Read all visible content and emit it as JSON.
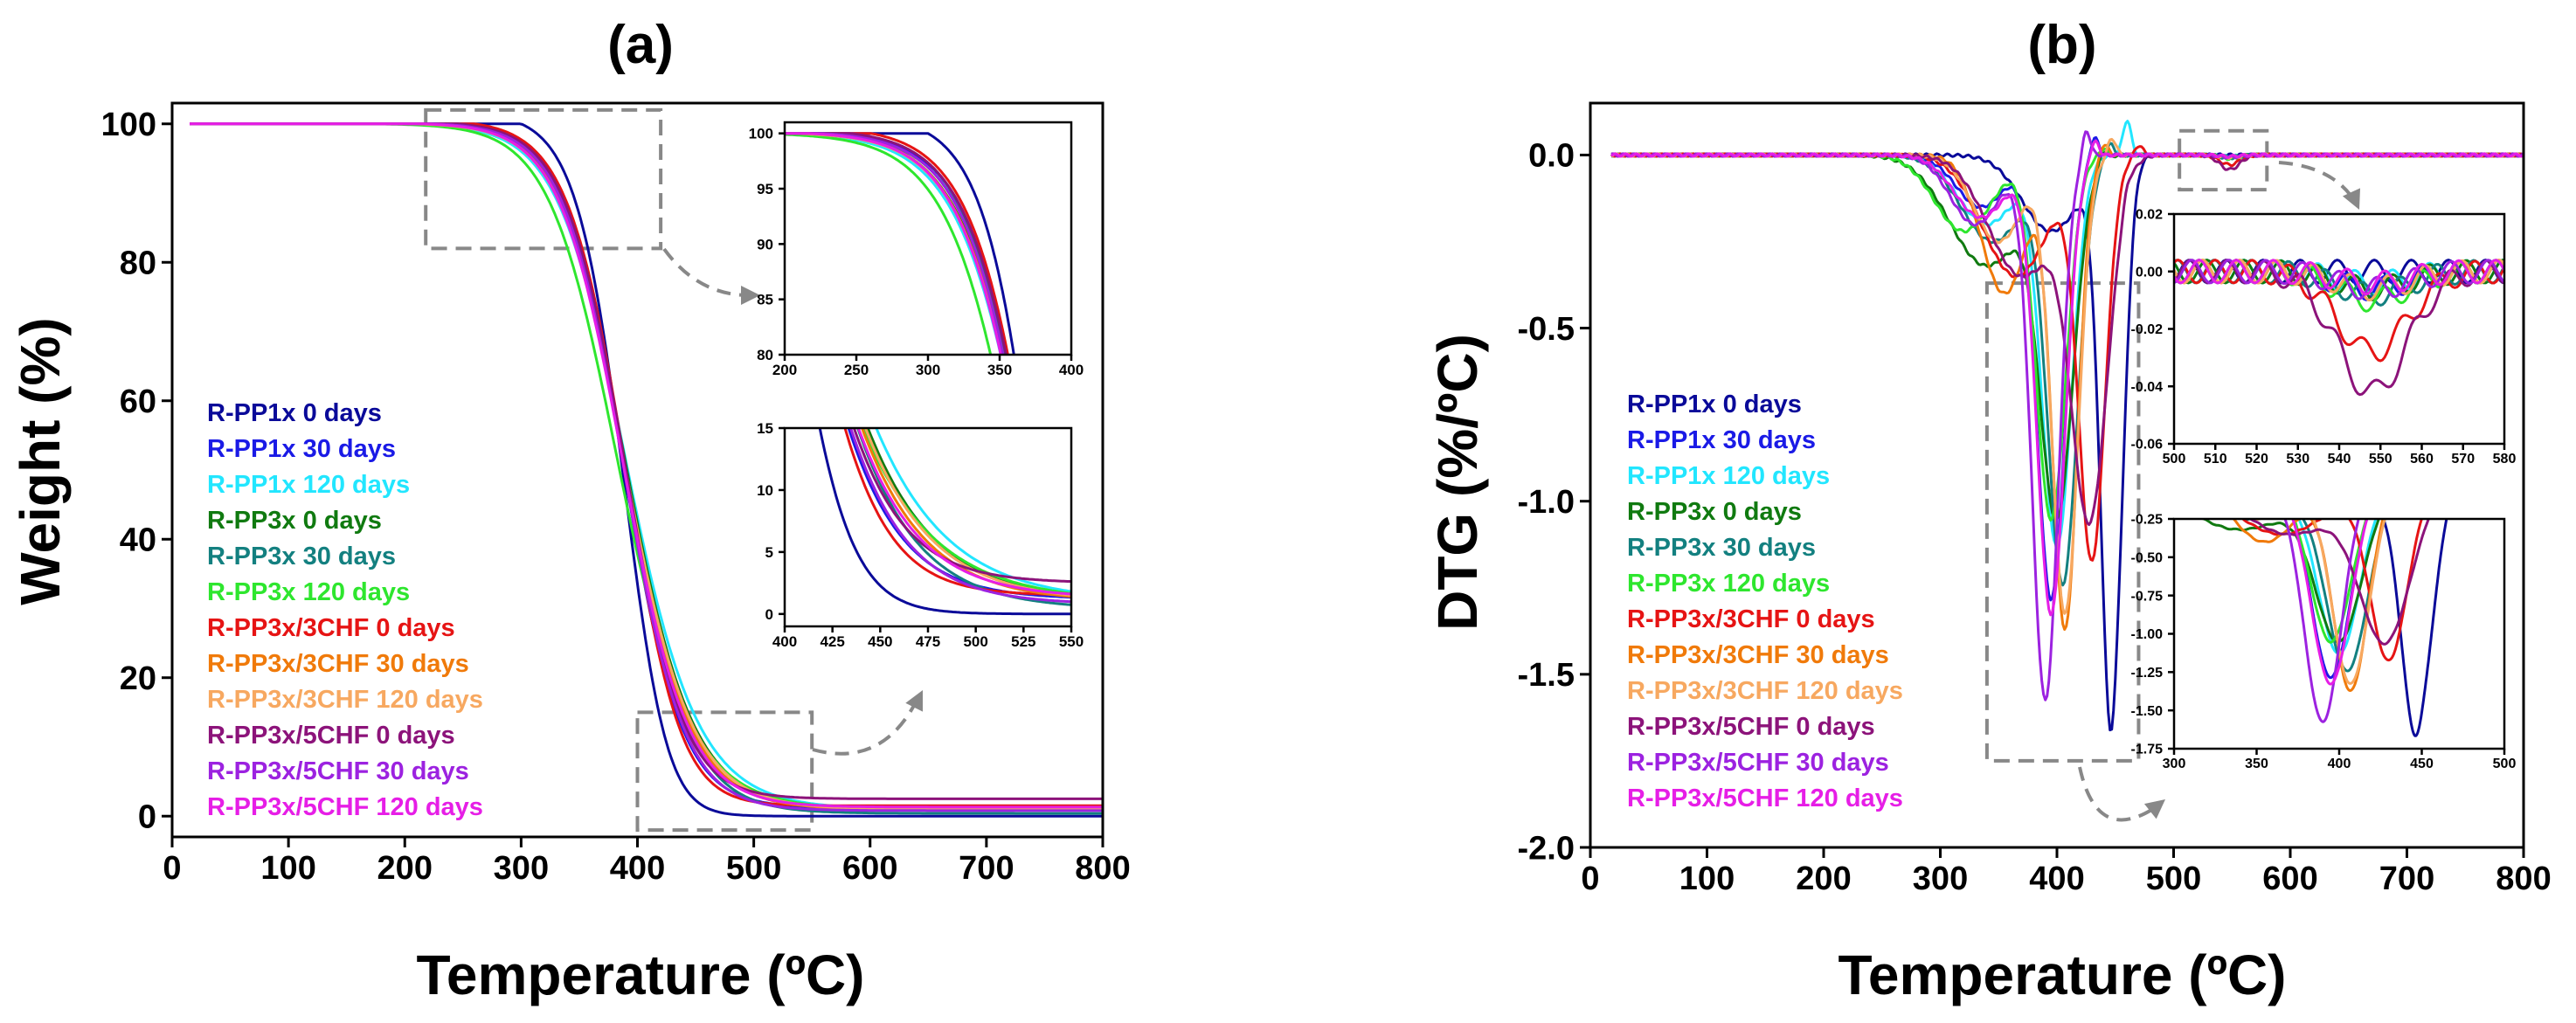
{
  "colors": {
    "axis": "#000000",
    "box": "#888888",
    "series": [
      "#0a0a99",
      "#1a1ae6",
      "#22e6ff",
      "#107a10",
      "#138080",
      "#2ee62e",
      "#e61414",
      "#f07a0a",
      "#f7a860",
      "#8c137a",
      "#9c22e0",
      "#e61ee6"
    ]
  },
  "legend": [
    "R-PP1x 0 days",
    "R-PP1x 30 days",
    "R-PP1x 120 days",
    "R-PP3x 0 days",
    "R-PP3x 30 days",
    "R-PP3x 120 days",
    "R-PP3x/3CHF 0 days",
    "R-PP3x/3CHF 30 days",
    "R-PP3x/3CHF 120 days",
    "R-PP3x/5CHF 0 days",
    "R-PP3x/5CHF 30 days",
    "R-PP3x/5CHF 120 days"
  ],
  "chart_data": [
    {
      "id": "a",
      "panel_label": "(a)",
      "type": "line",
      "xlabel": "Temperature (ºC)",
      "ylabel": "Weight (%)",
      "xlim": [
        0,
        800
      ],
      "ylim": [
        -3,
        103
      ],
      "xticks": [
        0,
        100,
        200,
        300,
        400,
        500,
        600,
        700,
        800
      ],
      "yticks": [
        0,
        20,
        40,
        60,
        80,
        100
      ],
      "legend_position": "left",
      "series": [
        {
          "name": "R-PP1x 0 days",
          "onset": 300,
          "t50": 400,
          "width": 22,
          "steep": 1.6,
          "residue": 0.0,
          "rise": 0
        },
        {
          "name": "R-PP1x 30 days",
          "onset": 215,
          "t50": 388,
          "width": 25,
          "steep": 1.0,
          "residue": 1.2,
          "rise": 0
        },
        {
          "name": "R-PP1x 120 days",
          "onset": 190,
          "t50": 382,
          "width": 28,
          "steep": 0.8,
          "residue": 1.0,
          "rise": 0
        },
        {
          "name": "R-PP3x 0 days",
          "onset": 205,
          "t50": 384,
          "width": 27,
          "steep": 0.85,
          "residue": 1.1,
          "rise": 0
        },
        {
          "name": "R-PP3x 30 days",
          "onset": 210,
          "t50": 386,
          "width": 26,
          "steep": 0.9,
          "residue": 0.4,
          "rise": 0
        },
        {
          "name": "R-PP3x 120 days",
          "onset": 170,
          "t50": 375,
          "width": 28,
          "steep": 0.8,
          "residue": 1.0,
          "rise": 0
        },
        {
          "name": "R-PP3x/3CHF 0 days",
          "onset": 260,
          "t50": 398,
          "width": 26,
          "steep": 1.3,
          "residue": 1.5,
          "rise": 0
        },
        {
          "name": "R-PP3x/3CHF 30 days",
          "onset": 215,
          "t50": 385,
          "width": 27,
          "steep": 0.9,
          "residue": 1.0,
          "rise": 0
        },
        {
          "name": "R-PP3x/3CHF 120 days",
          "onset": 205,
          "t50": 383,
          "width": 27,
          "steep": 0.85,
          "residue": 1.0,
          "rise": 0
        },
        {
          "name": "R-PP3x/5CHF 0 days",
          "onset": 245,
          "t50": 392,
          "width": 26,
          "steep": 1.1,
          "residue": 2.5,
          "rise": 0
        },
        {
          "name": "R-PP3x/5CHF 30 days",
          "onset": 225,
          "t50": 388,
          "width": 26,
          "steep": 1.0,
          "residue": 0.8,
          "rise": 0
        },
        {
          "name": "R-PP3x/5CHF 120 days",
          "onset": 215,
          "t50": 386,
          "width": 27,
          "steep": 0.95,
          "residue": 1.3,
          "rise": 0
        }
      ],
      "zoom_boxes": [
        {
          "x": [
            218,
            420
          ],
          "y": [
            82,
            102
          ]
        },
        {
          "x": [
            400,
            550
          ],
          "y": [
            -2,
            15
          ]
        }
      ],
      "insets": [
        {
          "xlim": [
            200,
            400
          ],
          "ylim": [
            80,
            101
          ],
          "xticks": [
            200,
            250,
            300,
            350,
            400
          ],
          "yticks": [
            80,
            85,
            90,
            95,
            100
          ]
        },
        {
          "xlim": [
            400,
            550
          ],
          "ylim": [
            -1,
            15
          ],
          "xticks": [
            400,
            425,
            450,
            475,
            500,
            525,
            550
          ],
          "yticks": [
            0,
            5,
            10,
            15
          ]
        }
      ]
    },
    {
      "id": "b",
      "panel_label": "(b)",
      "type": "line",
      "xlabel": "Temperature (ºC)",
      "ylabel": "DTG (%/ºC)",
      "xlim": [
        0,
        800
      ],
      "ylim": [
        -2.0,
        0.15
      ],
      "xticks": [
        0,
        100,
        200,
        300,
        400,
        500,
        600,
        700,
        800
      ],
      "yticks": [
        0.0,
        -0.5,
        -1.0,
        -1.5,
        -2.0
      ],
      "legend_position": "left",
      "series": [
        {
          "name": "R-PP1x 0 days",
          "peaks": [
            {
              "t": 447,
              "depth": 1.67,
              "w": 13
            },
            {
              "t": 395,
              "depth": 0.22,
              "w": 35
            }
          ],
          "overshoot": 0.1,
          "ot": 452,
          "pert": 0.0
        },
        {
          "name": "R-PP1x 30 days",
          "peaks": [
            {
              "t": 395,
              "depth": 1.28,
              "w": 17
            },
            {
              "t": 335,
              "depth": 0.15,
              "w": 30
            }
          ],
          "overshoot": 0.06,
          "ot": 432,
          "pert": -0.006
        },
        {
          "name": "R-PP1x 120 days",
          "peaks": [
            {
              "t": 400,
              "depth": 1.12,
              "w": 18
            },
            {
              "t": 340,
              "depth": 0.2,
              "w": 35
            }
          ],
          "overshoot": 0.1,
          "ot": 460,
          "pert": -0.004
        },
        {
          "name": "R-PP3x 0 days",
          "peaks": [
            {
              "t": 400,
              "depth": 1.0,
              "w": 20
            },
            {
              "t": 340,
              "depth": 0.32,
              "w": 45
            }
          ],
          "overshoot": 0.03,
          "ot": 440,
          "pert": -0.006
        },
        {
          "name": "R-PP3x 30 days",
          "peaks": [
            {
              "t": 405,
              "depth": 1.22,
              "w": 18
            },
            {
              "t": 345,
              "depth": 0.25,
              "w": 38
            }
          ],
          "overshoot": 0.04,
          "ot": 445,
          "pert": -0.008
        },
        {
          "name": "R-PP3x 120 days",
          "peaks": [
            {
              "t": 395,
              "depth": 1.05,
              "w": 18
            },
            {
              "t": 320,
              "depth": 0.22,
              "w": 35
            }
          ],
          "overshoot": 0.02,
          "ot": 440,
          "pert": -0.01
        },
        {
          "name": "R-PP3x/3CHF 0 days",
          "peaks": [
            {
              "t": 430,
              "depth": 1.15,
              "w": 16
            },
            {
              "t": 365,
              "depth": 0.35,
              "w": 40
            }
          ],
          "overshoot": 0.03,
          "ot": 470,
          "pert": -0.028
        },
        {
          "name": "R-PP3x/3CHF 30 days",
          "peaks": [
            {
              "t": 407,
              "depth": 1.36,
              "w": 15
            },
            {
              "t": 355,
              "depth": 0.4,
              "w": 28
            }
          ],
          "overshoot": 0.04,
          "ot": 440,
          "pert": -0.006
        },
        {
          "name": "R-PP3x/3CHF 120 days",
          "peaks": [
            {
              "t": 407,
              "depth": 1.32,
              "w": 16
            },
            {
              "t": 350,
              "depth": 0.25,
              "w": 30
            }
          ],
          "overshoot": 0.05,
          "ot": 447,
          "pert": -0.006
        },
        {
          "name": "R-PP3x/5CHF 0 days",
          "peaks": [
            {
              "t": 428,
              "depth": 1.02,
              "w": 22
            },
            {
              "t": 370,
              "depth": 0.35,
              "w": 40
            }
          ],
          "overshoot": 0.03,
          "ot": 460,
          "pert": -0.042
        },
        {
          "name": "R-PP3x/5CHF 30 days",
          "peaks": [
            {
              "t": 390,
              "depth": 1.57,
              "w": 16
            },
            {
              "t": 330,
              "depth": 0.2,
              "w": 30
            }
          ],
          "overshoot": 0.08,
          "ot": 425,
          "pert": -0.006
        },
        {
          "name": "R-PP3x/5CHF 120 days",
          "peaks": [
            {
              "t": 395,
              "depth": 1.32,
              "w": 17
            },
            {
              "t": 335,
              "depth": 0.18,
              "w": 32
            }
          ],
          "overshoot": 0.05,
          "ot": 432,
          "pert": -0.004
        }
      ],
      "zoom_boxes": [
        {
          "x": [
            505,
            580
          ],
          "y": [
            -0.1,
            0.07
          ]
        },
        {
          "x": [
            340,
            470
          ],
          "y": [
            -1.75,
            -0.37
          ]
        }
      ],
      "insets": [
        {
          "xlim": [
            500,
            580
          ],
          "ylim": [
            -0.06,
            0.02
          ],
          "xticks": [
            500,
            510,
            520,
            530,
            540,
            550,
            560,
            570,
            580
          ],
          "yticks": [
            0.02,
            0.0,
            -0.02,
            -0.04,
            -0.06
          ]
        },
        {
          "xlim": [
            300,
            500
          ],
          "ylim": [
            -1.75,
            -0.25
          ],
          "xticks": [
            300,
            350,
            400,
            450,
            500
          ],
          "yticks": [
            -0.25,
            -0.5,
            -0.75,
            -1.0,
            -1.25,
            -1.5,
            -1.75
          ]
        }
      ]
    }
  ]
}
